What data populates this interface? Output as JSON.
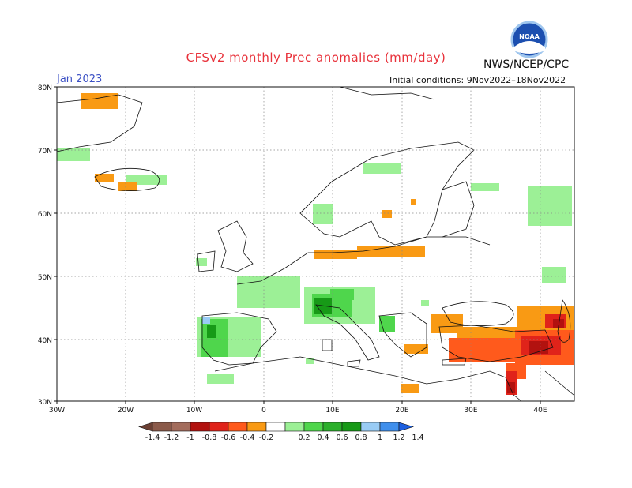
{
  "header": {
    "title": "CFSv2 monthly Prec anomalies (mm/day)",
    "agency": "NWS/NCEP/CPC",
    "logo_text": "NOAA",
    "month": "Jan 2023",
    "initial_conditions": "Initial conditions: 9Nov2022–18Nov2022"
  },
  "map": {
    "lon_range": [
      -30,
      45
    ],
    "lat_range": [
      30,
      80
    ],
    "lat_labels": [
      "80N",
      "70N",
      "60N",
      "50N",
      "40N",
      "30N"
    ],
    "lon_labels": [
      "30W",
      "20W",
      "10W",
      "0",
      "10E",
      "20E",
      "30E",
      "40E"
    ]
  },
  "colorbar": {
    "labels": [
      "-1.4",
      "-1.2",
      "-1",
      "-0.8",
      "-0.6",
      "-0.4",
      "-0.2",
      "0.2",
      "0.4",
      "0.6",
      "0.8",
      "1",
      "1.2",
      "1.4"
    ],
    "colors": [
      "#6b3f33",
      "#8b5a4a",
      "#a36c5c",
      "#b2120f",
      "#e0231a",
      "#ff5a1c",
      "#f99a14",
      "#ffffff",
      "#9cf096",
      "#4fd64c",
      "#2bb02b",
      "#179a17",
      "#99ccf5",
      "#3f8fec",
      "#1c5fe0"
    ]
  }
}
